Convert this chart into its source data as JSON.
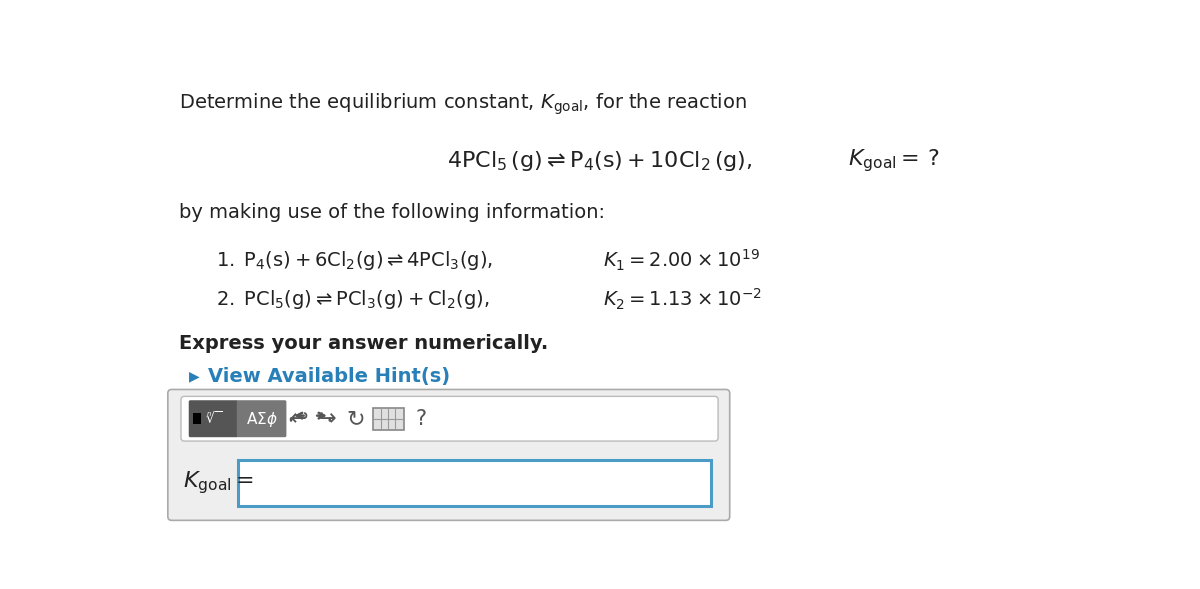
{
  "white": "#ffffff",
  "blue_border": "#4a9cc7",
  "text_color": "#222222",
  "hint_color": "#2980b9",
  "title_line": "Determine the equilibrium constant, $K_{\\mathrm{goal}}$, for the reaction",
  "reaction_main": "$4\\mathrm{PCl}_5\\,(\\mathrm{g}) \\rightleftharpoons \\mathrm{P}_4(\\mathrm{s}) + 10\\mathrm{Cl}_2\\,(\\mathrm{g}),$",
  "kgoal_eq": "$K_{\\mathrm{goal}} = \\,?$",
  "by_making": "by making use of the following information:",
  "rxn1": "$1.\\; \\mathrm{P}_4(\\mathrm{s}) + 6\\mathrm{Cl}_2(\\mathrm{g}) \\rightleftharpoons 4\\mathrm{PCl}_3(\\mathrm{g}),$",
  "k1_val": "$K_1 = 2.00 \\times 10^{19}$",
  "rxn2": "$2.\\; \\mathrm{PCl}_5(\\mathrm{g}) \\rightleftharpoons \\mathrm{PCl}_3(\\mathrm{g}) + \\mathrm{Cl}_2(\\mathrm{g}),$",
  "k2_val": "$K_2 = 1.13 \\times 10^{-2}$",
  "express": "Express your answer numerically.",
  "hint_text": "View Available Hint(s)",
  "kgoal_label": "$K_{\\mathrm{goal}} =$"
}
